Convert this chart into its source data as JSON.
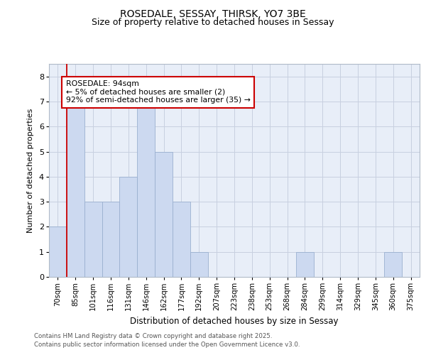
{
  "title1": "ROSEDALE, SESSAY, THIRSK, YO7 3BE",
  "title2": "Size of property relative to detached houses in Sessay",
  "xlabel": "Distribution of detached houses by size in Sessay",
  "ylabel": "Number of detached properties",
  "categories": [
    "70sqm",
    "85sqm",
    "101sqm",
    "116sqm",
    "131sqm",
    "146sqm",
    "162sqm",
    "177sqm",
    "192sqm",
    "207sqm",
    "223sqm",
    "238sqm",
    "253sqm",
    "268sqm",
    "284sqm",
    "299sqm",
    "314sqm",
    "329sqm",
    "345sqm",
    "360sqm",
    "375sqm"
  ],
  "values": [
    2,
    7,
    3,
    3,
    4,
    7,
    5,
    3,
    1,
    0,
    0,
    0,
    0,
    0,
    1,
    0,
    0,
    0,
    0,
    1,
    0
  ],
  "bar_color": "#ccd9f0",
  "bar_edge_color": "#9ab0d0",
  "vline_x": 0.5,
  "vline_color": "#cc0000",
  "annotation_title": "ROSEDALE: 94sqm",
  "annotation_line2": "← 5% of detached houses are smaller (2)",
  "annotation_line3": "92% of semi-detached houses are larger (35) →",
  "ylim": [
    0,
    8.5
  ],
  "yticks": [
    0,
    1,
    2,
    3,
    4,
    5,
    6,
    7,
    8
  ],
  "plot_bg": "#e8eef8",
  "grid_color": "#c8d0e0",
  "footer1": "Contains HM Land Registry data © Crown copyright and database right 2025.",
  "footer2": "Contains public sector information licensed under the Open Government Licence v3.0."
}
